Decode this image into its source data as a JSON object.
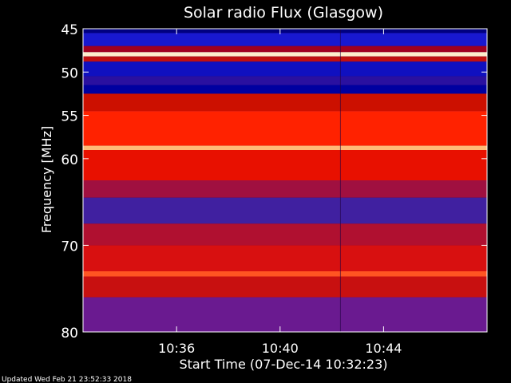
{
  "chart_data": {
    "type": "heatmap",
    "title": "Solar radio Flux (Glasgow)",
    "xlabel": "Start Time (07-Dec-14 10:32:23)",
    "ylabel": "Frequency [MHz]",
    "x_unit": "time",
    "x_range": [
      "10:32:23",
      "10:48:00"
    ],
    "x_ticks": [
      {
        "value": "10:36",
        "label": "10:36"
      },
      {
        "value": "10:40",
        "label": "10:40"
      },
      {
        "value": "10:44",
        "label": "10:44"
      }
    ],
    "y_range": [
      45,
      80
    ],
    "y_reversed": true,
    "y_ticks": [
      45,
      50,
      55,
      60,
      70,
      80
    ],
    "y_tick_labels": [
      "45",
      "50",
      "55",
      "60",
      "70",
      "80"
    ],
    "colormap": [
      "#0000cc",
      "#cc0000",
      "#ff3300",
      "#ffcc66"
    ],
    "instrument_change_time": "10:42:20",
    "frequency_bands": [
      {
        "from": 45.0,
        "to": 45.5,
        "color": "#000080"
      },
      {
        "from": 45.5,
        "to": 47.0,
        "color": "#1818d0"
      },
      {
        "from": 47.0,
        "to": 47.7,
        "color": "#a00020"
      },
      {
        "from": 47.7,
        "to": 48.2,
        "color": "#ffeecc"
      },
      {
        "from": 48.2,
        "to": 48.8,
        "color": "#c01010"
      },
      {
        "from": 48.8,
        "to": 50.5,
        "color": "#1010c0"
      },
      {
        "from": 50.5,
        "to": 51.5,
        "color": "#2a10a0"
      },
      {
        "from": 51.5,
        "to": 52.5,
        "color": "#0000a0"
      },
      {
        "from": 52.5,
        "to": 54.5,
        "color": "#cc1000"
      },
      {
        "from": 54.5,
        "to": 58.5,
        "color": "#ff2200"
      },
      {
        "from": 58.5,
        "to": 59.0,
        "color": "#ffbb77"
      },
      {
        "from": 59.0,
        "to": 62.5,
        "color": "#e81000"
      },
      {
        "from": 62.5,
        "to": 64.5,
        "color": "#a01040"
      },
      {
        "from": 64.5,
        "to": 67.5,
        "color": "#4020a0"
      },
      {
        "from": 67.5,
        "to": 70.0,
        "color": "#b01030"
      },
      {
        "from": 70.0,
        "to": 73.0,
        "color": "#d81010"
      },
      {
        "from": 73.0,
        "to": 73.6,
        "color": "#ff5522"
      },
      {
        "from": 73.6,
        "to": 76.0,
        "color": "#c81010"
      },
      {
        "from": 76.0,
        "to": 80.0,
        "color": "#6a1a90"
      }
    ]
  },
  "footer": {
    "updated": "Updated Wed Feb 21 23:52:33 2018"
  }
}
